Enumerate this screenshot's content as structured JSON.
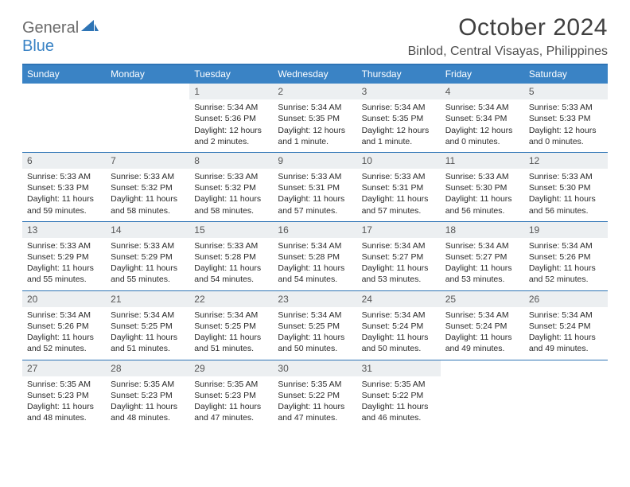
{
  "brand": {
    "part1": "General",
    "part2": "Blue"
  },
  "title": "October 2024",
  "location": "Binlod, Central Visayas, Philippines",
  "colors": {
    "accent": "#3a83c5",
    "accent_border": "#2e74b5",
    "daynum_bg": "#eceff1",
    "text": "#2a2a2a",
    "title_text": "#404040"
  },
  "dow": [
    "Sunday",
    "Monday",
    "Tuesday",
    "Wednesday",
    "Thursday",
    "Friday",
    "Saturday"
  ],
  "weeks": [
    [
      null,
      null,
      {
        "n": "1",
        "sr": "5:34 AM",
        "ss": "5:36 PM",
        "dl": "12 hours and 2 minutes."
      },
      {
        "n": "2",
        "sr": "5:34 AM",
        "ss": "5:35 PM",
        "dl": "12 hours and 1 minute."
      },
      {
        "n": "3",
        "sr": "5:34 AM",
        "ss": "5:35 PM",
        "dl": "12 hours and 1 minute."
      },
      {
        "n": "4",
        "sr": "5:34 AM",
        "ss": "5:34 PM",
        "dl": "12 hours and 0 minutes."
      },
      {
        "n": "5",
        "sr": "5:33 AM",
        "ss": "5:33 PM",
        "dl": "12 hours and 0 minutes."
      }
    ],
    [
      {
        "n": "6",
        "sr": "5:33 AM",
        "ss": "5:33 PM",
        "dl": "11 hours and 59 minutes."
      },
      {
        "n": "7",
        "sr": "5:33 AM",
        "ss": "5:32 PM",
        "dl": "11 hours and 58 minutes."
      },
      {
        "n": "8",
        "sr": "5:33 AM",
        "ss": "5:32 PM",
        "dl": "11 hours and 58 minutes."
      },
      {
        "n": "9",
        "sr": "5:33 AM",
        "ss": "5:31 PM",
        "dl": "11 hours and 57 minutes."
      },
      {
        "n": "10",
        "sr": "5:33 AM",
        "ss": "5:31 PM",
        "dl": "11 hours and 57 minutes."
      },
      {
        "n": "11",
        "sr": "5:33 AM",
        "ss": "5:30 PM",
        "dl": "11 hours and 56 minutes."
      },
      {
        "n": "12",
        "sr": "5:33 AM",
        "ss": "5:30 PM",
        "dl": "11 hours and 56 minutes."
      }
    ],
    [
      {
        "n": "13",
        "sr": "5:33 AM",
        "ss": "5:29 PM",
        "dl": "11 hours and 55 minutes."
      },
      {
        "n": "14",
        "sr": "5:33 AM",
        "ss": "5:29 PM",
        "dl": "11 hours and 55 minutes."
      },
      {
        "n": "15",
        "sr": "5:33 AM",
        "ss": "5:28 PM",
        "dl": "11 hours and 54 minutes."
      },
      {
        "n": "16",
        "sr": "5:34 AM",
        "ss": "5:28 PM",
        "dl": "11 hours and 54 minutes."
      },
      {
        "n": "17",
        "sr": "5:34 AM",
        "ss": "5:27 PM",
        "dl": "11 hours and 53 minutes."
      },
      {
        "n": "18",
        "sr": "5:34 AM",
        "ss": "5:27 PM",
        "dl": "11 hours and 53 minutes."
      },
      {
        "n": "19",
        "sr": "5:34 AM",
        "ss": "5:26 PM",
        "dl": "11 hours and 52 minutes."
      }
    ],
    [
      {
        "n": "20",
        "sr": "5:34 AM",
        "ss": "5:26 PM",
        "dl": "11 hours and 52 minutes."
      },
      {
        "n": "21",
        "sr": "5:34 AM",
        "ss": "5:25 PM",
        "dl": "11 hours and 51 minutes."
      },
      {
        "n": "22",
        "sr": "5:34 AM",
        "ss": "5:25 PM",
        "dl": "11 hours and 51 minutes."
      },
      {
        "n": "23",
        "sr": "5:34 AM",
        "ss": "5:25 PM",
        "dl": "11 hours and 50 minutes."
      },
      {
        "n": "24",
        "sr": "5:34 AM",
        "ss": "5:24 PM",
        "dl": "11 hours and 50 minutes."
      },
      {
        "n": "25",
        "sr": "5:34 AM",
        "ss": "5:24 PM",
        "dl": "11 hours and 49 minutes."
      },
      {
        "n": "26",
        "sr": "5:34 AM",
        "ss": "5:24 PM",
        "dl": "11 hours and 49 minutes."
      }
    ],
    [
      {
        "n": "27",
        "sr": "5:35 AM",
        "ss": "5:23 PM",
        "dl": "11 hours and 48 minutes."
      },
      {
        "n": "28",
        "sr": "5:35 AM",
        "ss": "5:23 PM",
        "dl": "11 hours and 48 minutes."
      },
      {
        "n": "29",
        "sr": "5:35 AM",
        "ss": "5:23 PM",
        "dl": "11 hours and 47 minutes."
      },
      {
        "n": "30",
        "sr": "5:35 AM",
        "ss": "5:22 PM",
        "dl": "11 hours and 47 minutes."
      },
      {
        "n": "31",
        "sr": "5:35 AM",
        "ss": "5:22 PM",
        "dl": "11 hours and 46 minutes."
      },
      null,
      null
    ]
  ],
  "labels": {
    "sunrise": "Sunrise:",
    "sunset": "Sunset:",
    "daylight": "Daylight:"
  }
}
